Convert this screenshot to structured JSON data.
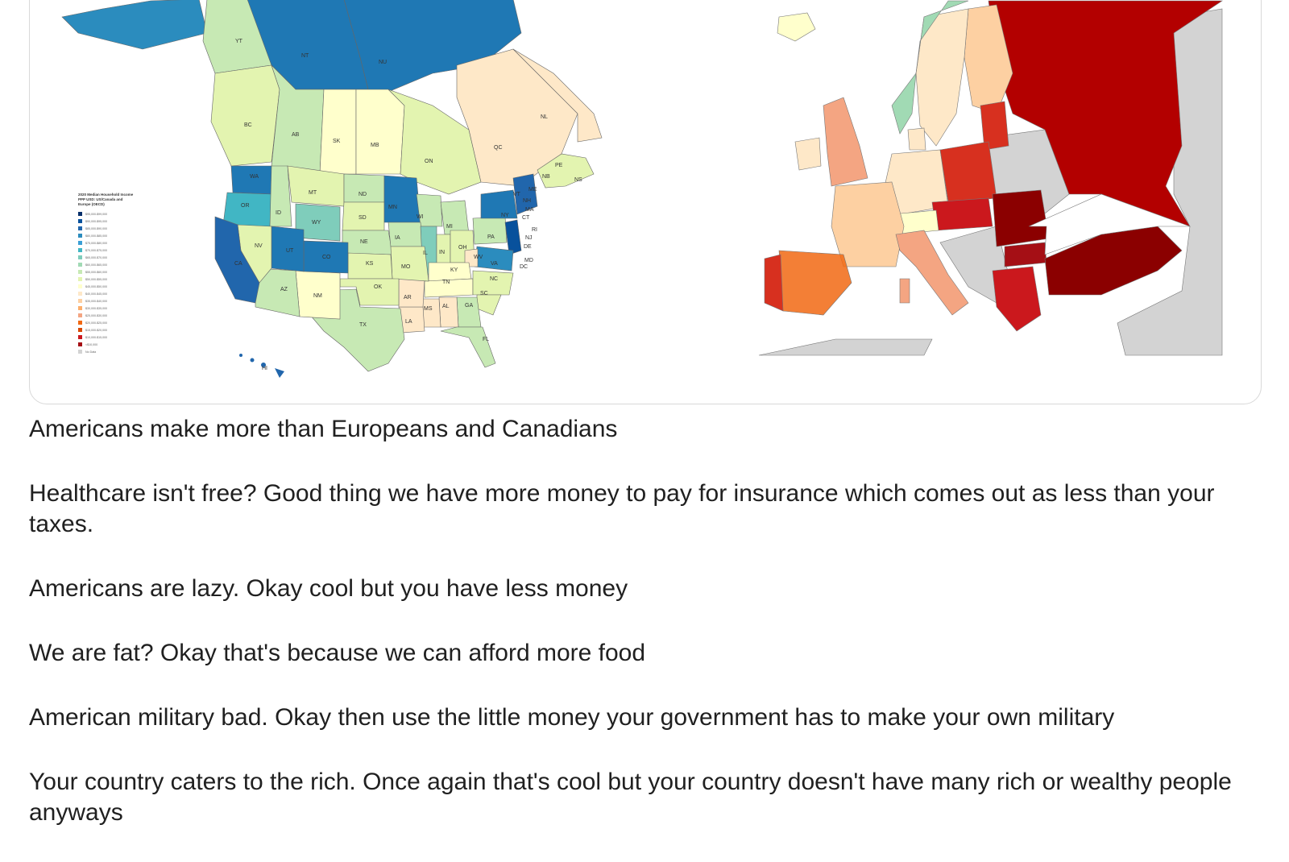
{
  "map": {
    "legend_title_lines": [
      "2020 Median Household Income",
      "PPP USD: US/Canada and",
      "Europe (OECD)"
    ],
    "legend_items": [
      {
        "label": "$95,000-$99,000",
        "color": "#08306b"
      },
      {
        "label": "$90,000-$95,000",
        "color": "#08519c"
      },
      {
        "label": "$85,000-$90,000",
        "color": "#2166ac"
      },
      {
        "label": "$80,000-$85,000",
        "color": "#2b8cbe"
      },
      {
        "label": "$75,000-$80,000",
        "color": "#3a9fd6"
      },
      {
        "label": "$70,000-$75,000",
        "color": "#41b6c4"
      },
      {
        "label": "$65,000-$70,000",
        "color": "#7fcdbb"
      },
      {
        "label": "$60,000-$65,000",
        "color": "#a1dab4"
      },
      {
        "label": "$55,000-$60,000",
        "color": "#c7e9b4"
      },
      {
        "label": "$50,000-$55,000",
        "color": "#e3f4b0"
      },
      {
        "label": "$45,000-$50,000",
        "color": "#ffffcc"
      },
      {
        "label": "$40,000-$45,000",
        "color": "#fee8c8"
      },
      {
        "label": "$35,000-$40,000",
        "color": "#fdd0a2"
      },
      {
        "label": "$30,000-$35,000",
        "color": "#fdae6b"
      },
      {
        "label": "$25,000-$30,000",
        "color": "#f4a582"
      },
      {
        "label": "$20,000-$25,000",
        "color": "#f16913"
      },
      {
        "label": "$15,000-$20,000",
        "color": "#d94801"
      },
      {
        "label": "$10,000-$15,000",
        "color": "#cb181d"
      },
      {
        "label": "<$10,000",
        "color": "#a50f15"
      },
      {
        "label": "No Data",
        "color": "#d3d3d3"
      }
    ],
    "region_labels": [
      "YT",
      "NT",
      "NU",
      "BC",
      "AB",
      "SK",
      "MB",
      "ON",
      "QC",
      "NL",
      "PE",
      "NS",
      "NB",
      "ME",
      "WA",
      "OR",
      "ID",
      "MT",
      "WY",
      "ND",
      "SD",
      "NE",
      "MN",
      "WI",
      "MI",
      "IA",
      "IL",
      "IN",
      "OH",
      "PA",
      "NY",
      "VT",
      "NH",
      "MA",
      "RI",
      "CT",
      "NJ",
      "DE",
      "MD",
      "DC",
      "VA",
      "WV",
      "KY",
      "TN",
      "NC",
      "SC",
      "GA",
      "AL",
      "MS",
      "LA",
      "AR",
      "MO",
      "KS",
      "OK",
      "TX",
      "NM",
      "AZ",
      "UT",
      "CO",
      "NV",
      "CA",
      "HI",
      "FL"
    ],
    "colors": {
      "card_border": "#d9d9d9",
      "dark_blue": "#1f78b4",
      "mid_blue": "#2b8cbe",
      "pale_green": "#e3f4b0",
      "light_green": "#c7e9b4",
      "cream": "#ffffcc",
      "peach": "#fee8c8",
      "dark_red": "#b30000",
      "red": "#d7301f",
      "orange": "#f4a582",
      "no_data_gray": "#d3d3d3"
    }
  },
  "post": {
    "paragraphs": [
      "Americans make more than Europeans and Canadians",
      "Healthcare isn't free? Good thing we have more money to pay for insurance which comes out as less than your taxes.",
      "Americans are lazy. Okay cool but you have less money",
      "We are fat? Okay that's because we can afford more food",
      "American military bad. Okay then use the little money your government has to make your own military",
      "Your country caters to the rich. Once again that's cool but your country doesn't have many rich or wealthy people anyways"
    ]
  }
}
